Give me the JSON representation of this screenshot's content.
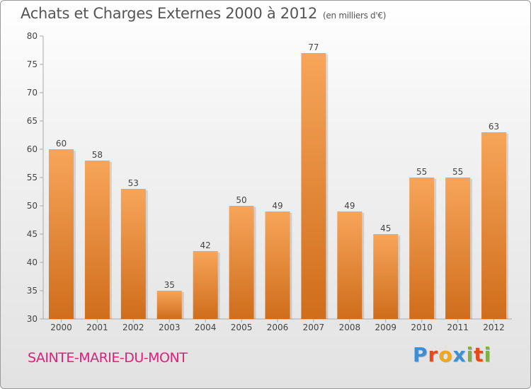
{
  "header": {
    "title": "Achats et Charges Externes 2000 à 2012",
    "subtitle": "(en milliers d'€)"
  },
  "footer": {
    "commune": "SAINTE-MARIE-DU-MONT",
    "logo_letters": [
      {
        "ch": "P",
        "color": "#3a8fd6"
      },
      {
        "ch": "r",
        "color": "#e64a19"
      },
      {
        "ch": "o",
        "color": "#f2a71b"
      },
      {
        "ch": "x",
        "color": "#3a8fd6"
      },
      {
        "ch": "i",
        "color": "#7cb342"
      },
      {
        "ch": "t",
        "color": "#e64a19"
      },
      {
        "ch": "i",
        "color": "#7cb342"
      }
    ]
  },
  "colors": {
    "bar_light": "#f7a55a",
    "bar_dark": "#cf6d1b",
    "commune": "#e0207a"
  },
  "chart_data": {
    "type": "bar",
    "categories": [
      "2000",
      "2001",
      "2002",
      "2003",
      "2004",
      "2005",
      "2006",
      "2007",
      "2008",
      "2009",
      "2010",
      "2011",
      "2012"
    ],
    "values": [
      60,
      58,
      53,
      35,
      42,
      50,
      49,
      77,
      49,
      45,
      55,
      55,
      63
    ],
    "ylim": [
      30,
      80
    ],
    "yticks": [
      30,
      35,
      40,
      45,
      50,
      55,
      60,
      65,
      70,
      75,
      80
    ],
    "grid": false,
    "legend": "none"
  }
}
